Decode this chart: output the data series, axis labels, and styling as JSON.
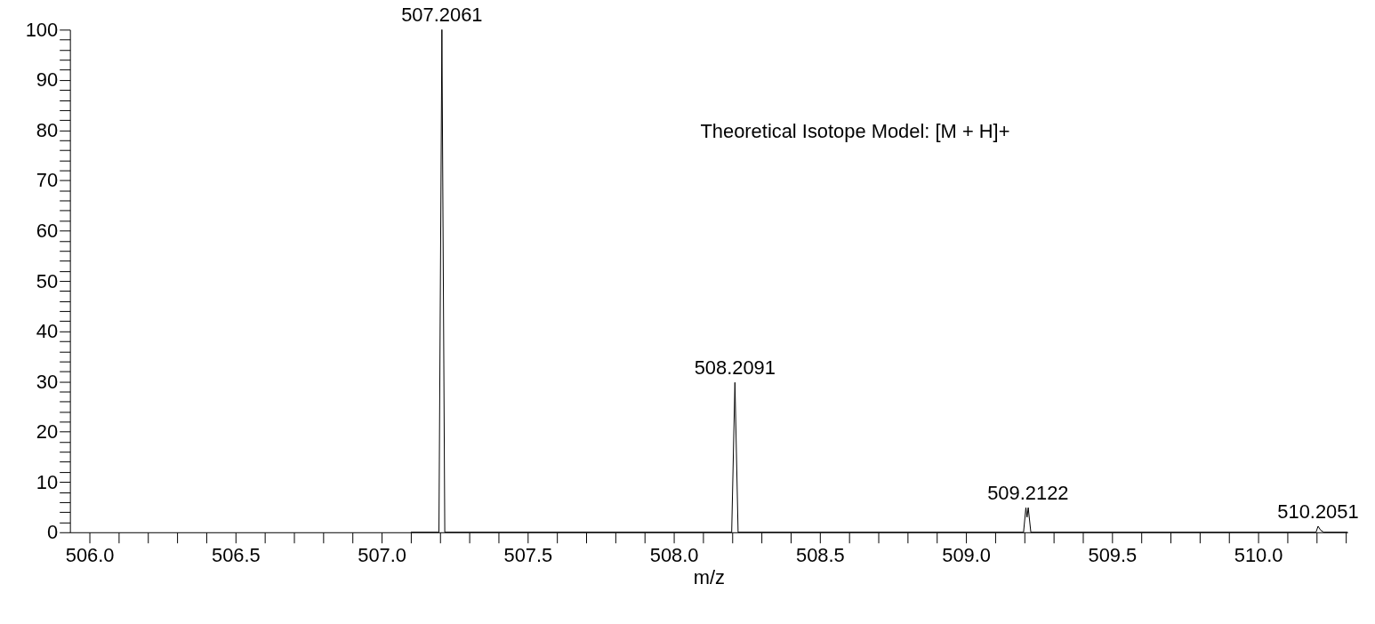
{
  "chart_data": {
    "type": "line",
    "xlabel": "m/z",
    "x": [
      507.1,
      507.196,
      507.2061,
      507.216,
      508.198,
      508.2091,
      508.22,
      509.197,
      509.205,
      509.209,
      509.213,
      509.222,
      510.198,
      510.2051,
      510.214,
      510.225,
      510.306
    ],
    "series": [
      {
        "color": "#000000",
        "values": [
          0,
          0,
          100,
          0,
          0,
          29.8,
          0,
          0,
          4.9,
          3,
          4.9,
          0,
          0,
          1.2,
          0.4,
          0,
          0
        ]
      }
    ],
    "xlim": [
      505.933,
      510.306
    ],
    "xticks": [
      {
        "value": 506.0,
        "label": "506.0"
      },
      {
        "value": 506.1,
        "label": null
      },
      {
        "value": 506.2,
        "label": null
      },
      {
        "value": 506.3,
        "label": null
      },
      {
        "value": 506.4,
        "label": null
      },
      {
        "value": 506.5,
        "label": "506.5"
      },
      {
        "value": 506.6,
        "label": null
      },
      {
        "value": 506.7,
        "label": null
      },
      {
        "value": 506.8,
        "label": null
      },
      {
        "value": 506.9,
        "label": null
      },
      {
        "value": 507.0,
        "label": "507.0"
      },
      {
        "value": 507.1,
        "label": null
      },
      {
        "value": 507.2,
        "label": null
      },
      {
        "value": 507.3,
        "label": null
      },
      {
        "value": 507.4,
        "label": null
      },
      {
        "value": 507.5,
        "label": "507.5"
      },
      {
        "value": 507.6,
        "label": null
      },
      {
        "value": 507.7,
        "label": null
      },
      {
        "value": 507.8,
        "label": null
      },
      {
        "value": 507.9,
        "label": null
      },
      {
        "value": 508.0,
        "label": "508.0"
      },
      {
        "value": 508.1,
        "label": null
      },
      {
        "value": 508.2,
        "label": null
      },
      {
        "value": 508.3,
        "label": null
      },
      {
        "value": 508.4,
        "label": null
      },
      {
        "value": 508.5,
        "label": "508.5"
      },
      {
        "value": 508.6,
        "label": null
      },
      {
        "value": 508.7,
        "label": null
      },
      {
        "value": 508.8,
        "label": null
      },
      {
        "value": 508.9,
        "label": null
      },
      {
        "value": 509.0,
        "label": "509.0"
      },
      {
        "value": 509.1,
        "label": null
      },
      {
        "value": 509.2,
        "label": null
      },
      {
        "value": 509.3,
        "label": null
      },
      {
        "value": 509.4,
        "label": null
      },
      {
        "value": 509.5,
        "label": "509.5"
      },
      {
        "value": 509.6,
        "label": null
      },
      {
        "value": 509.7,
        "label": null
      },
      {
        "value": 509.8,
        "label": null
      },
      {
        "value": 509.9,
        "label": null
      },
      {
        "value": 510.0,
        "label": "510.0"
      },
      {
        "value": 510.1,
        "label": null
      },
      {
        "value": 510.2,
        "label": null
      },
      {
        "value": 510.3,
        "label": null
      }
    ],
    "ylim": [
      0,
      100
    ],
    "yticks": [
      0,
      {
        "value": 2,
        "label": null
      },
      {
        "value": 4,
        "label": null
      },
      {
        "value": 6,
        "label": null
      },
      {
        "value": 8,
        "label": null
      },
      10,
      {
        "value": 12,
        "label": null
      },
      {
        "value": 14,
        "label": null
      },
      {
        "value": 16,
        "label": null
      },
      {
        "value": 18,
        "label": null
      },
      20,
      {
        "value": 22,
        "label": null
      },
      {
        "value": 24,
        "label": null
      },
      {
        "value": 26,
        "label": null
      },
      {
        "value": 28,
        "label": null
      },
      30,
      {
        "value": 32,
        "label": null
      },
      {
        "value": 34,
        "label": null
      },
      {
        "value": 36,
        "label": null
      },
      {
        "value": 38,
        "label": null
      },
      40,
      {
        "value": 42,
        "label": null
      },
      {
        "value": 44,
        "label": null
      },
      {
        "value": 46,
        "label": null
      },
      {
        "value": 48,
        "label": null
      },
      50,
      {
        "value": 52,
        "label": null
      },
      {
        "value": 54,
        "label": null
      },
      {
        "value": 56,
        "label": null
      },
      {
        "value": 58,
        "label": null
      },
      60,
      {
        "value": 62,
        "label": null
      },
      {
        "value": 64,
        "label": null
      },
      {
        "value": 66,
        "label": null
      },
      {
        "value": 68,
        "label": null
      },
      70,
      {
        "value": 72,
        "label": null
      },
      {
        "value": 74,
        "label": null
      },
      {
        "value": 76,
        "label": null
      },
      {
        "value": 78,
        "label": null
      },
      80,
      {
        "value": 82,
        "label": null
      },
      {
        "value": 84,
        "label": null
      },
      {
        "value": 86,
        "label": null
      },
      {
        "value": 88,
        "label": null
      },
      90,
      {
        "value": 92,
        "label": null
      },
      {
        "value": 94,
        "label": null
      },
      {
        "value": 96,
        "label": null
      },
      {
        "value": 98,
        "label": null
      },
      100
    ],
    "annotations": [
      {
        "text": "507.2061",
        "x": 507.2061,
        "y": 100
      },
      {
        "text": "508.2091",
        "x": 508.2091,
        "y": 29.8
      },
      {
        "text": "509.2122",
        "x": 509.2122,
        "y": 4.9
      },
      {
        "text": "510.2051",
        "x": 510.2051,
        "y": 1.2
      },
      "Theoretical Isotope Model: [M + H]+"
    ],
    "grid": false,
    "legend": false,
    "marker": "none",
    "line_style": "solid"
  }
}
